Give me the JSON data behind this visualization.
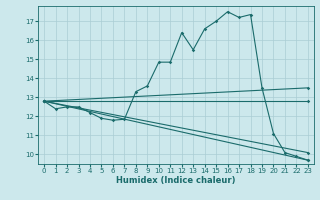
{
  "xlabel": "Humidex (Indice chaleur)",
  "bg_color": "#cce8ec",
  "grid_color": "#aacdd4",
  "line_color": "#1a6b6b",
  "xlim": [
    -0.5,
    23.5
  ],
  "ylim": [
    9.5,
    17.8
  ],
  "xticks": [
    0,
    1,
    2,
    3,
    4,
    5,
    6,
    7,
    8,
    9,
    10,
    11,
    12,
    13,
    14,
    15,
    16,
    17,
    18,
    19,
    20,
    21,
    22,
    23
  ],
  "yticks": [
    10,
    11,
    12,
    13,
    14,
    15,
    16,
    17
  ],
  "lines": [
    {
      "x": [
        0,
        1,
        2,
        3,
        4,
        5,
        6,
        7,
        8,
        9,
        10,
        11,
        12,
        13,
        14,
        15,
        16,
        17,
        18,
        19,
        20,
        21,
        22,
        23
      ],
      "y": [
        12.8,
        12.4,
        12.5,
        12.5,
        12.2,
        11.9,
        11.8,
        11.85,
        13.3,
        13.6,
        14.85,
        14.85,
        16.4,
        15.5,
        16.6,
        17.0,
        17.5,
        17.2,
        17.35,
        13.5,
        11.1,
        10.1,
        9.9,
        9.7
      ]
    },
    {
      "x": [
        0,
        23
      ],
      "y": [
        12.8,
        13.5
      ]
    },
    {
      "x": [
        0,
        23
      ],
      "y": [
        12.8,
        12.8
      ]
    },
    {
      "x": [
        0,
        23
      ],
      "y": [
        12.8,
        10.1
      ]
    },
    {
      "x": [
        0,
        23
      ],
      "y": [
        12.8,
        9.7
      ]
    }
  ]
}
